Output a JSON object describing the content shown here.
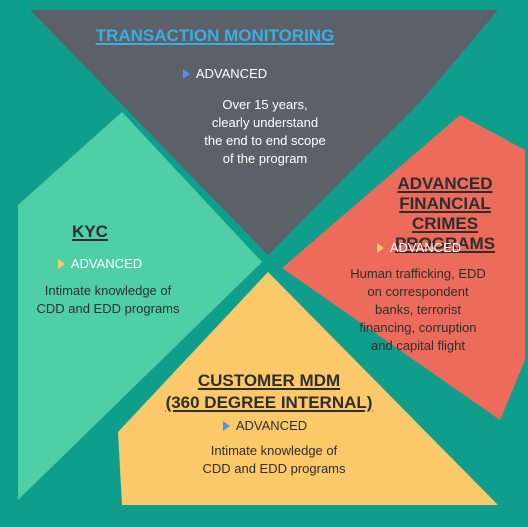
{
  "colors": {
    "background": "#0f9e8b",
    "transaction_panel": "#5c6169",
    "kyc_panel": "#4fcfa6",
    "financial_crimes_panel": "#ec6b5b",
    "customer_mdm_panel": "#fcc96a",
    "transaction_title": "#3aaee0"
  },
  "panels": {
    "transaction": {
      "title": "TRANSACTION MONITORING",
      "level": "ADVANCED",
      "desc": [
        "Over 15 years,",
        "clearly understand",
        "the end to end scope",
        "of the program"
      ]
    },
    "financial_crimes": {
      "title": [
        "ADVANCED",
        "FINANCIAL",
        "CRIMES PROGRAMS"
      ],
      "level": "ADVANCED",
      "desc": [
        "Human trafficking, EDD",
        "on correspondent",
        "banks, terrorist",
        "financing, corruption",
        "and capital flight"
      ]
    },
    "kyc": {
      "title": "KYC",
      "level": "ADVANCED",
      "desc": [
        "Intimate knowledge of",
        "CDD and EDD programs"
      ]
    },
    "customer_mdm": {
      "title": [
        "CUSTOMER MDM",
        "(360 DEGREE INTERNAL)"
      ],
      "level": "ADVANCED",
      "desc": [
        "Intimate knowledge of",
        "CDD and EDD programs"
      ]
    }
  }
}
